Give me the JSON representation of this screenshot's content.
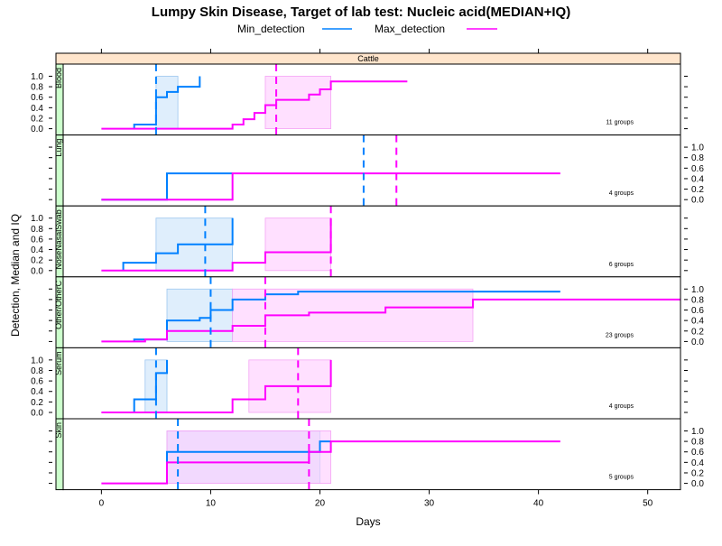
{
  "chart_data": {
    "type": "line",
    "title": "Lumpy Skin Disease, Target of lab test: Nucleic acid(MEDIAN+IQ)",
    "xlabel": "Days",
    "ylabel": "Detection, Median and IQ",
    "strip": "Cattle",
    "xlim": [
      -3.5,
      53
    ],
    "ylim": [
      0,
      1
    ],
    "x_ticks": [
      0,
      10,
      20,
      30,
      40,
      50
    ],
    "y_ticks": [
      0.0,
      0.2,
      0.4,
      0.6,
      0.8,
      1.0
    ],
    "y_tick_labels": [
      "0.0",
      "0.2",
      "0.4",
      "0.6",
      "0.8",
      "1.0"
    ],
    "legend": [
      {
        "name": "Min_detection",
        "color": "#0080ff"
      },
      {
        "name": "Max_detection",
        "color": "#ff00ff"
      }
    ],
    "colors": {
      "min": "#0080ff",
      "max": "#ff00ff",
      "min_band": "#d4e8fb",
      "max_band": "#ffccff",
      "overlap_band": "#d9c2f5",
      "strip_bg": "#ffe5cc",
      "panel_strip_bg": "#ccffcc"
    },
    "panels": [
      {
        "name": "Blood",
        "groups": "11 groups",
        "axis_side": "left",
        "min_median": 5,
        "min_iq": [
          5,
          7
        ],
        "max_median": 16,
        "max_iq": [
          15,
          21
        ],
        "min_step": [
          [
            3,
            0
          ],
          [
            3,
            0.08
          ],
          [
            5,
            0.08
          ],
          [
            5,
            0.6
          ],
          [
            6,
            0.6
          ],
          [
            6,
            0.7
          ],
          [
            7,
            0.7
          ],
          [
            7,
            0.8
          ],
          [
            9,
            0.8
          ],
          [
            9,
            1.0
          ]
        ],
        "max_step": [
          [
            0,
            0
          ],
          [
            12,
            0
          ],
          [
            12,
            0.08
          ],
          [
            13,
            0.08
          ],
          [
            13,
            0.18
          ],
          [
            14,
            0.18
          ],
          [
            14,
            0.3
          ],
          [
            15,
            0.3
          ],
          [
            15,
            0.45
          ],
          [
            16,
            0.45
          ],
          [
            16,
            0.55
          ],
          [
            19,
            0.55
          ],
          [
            19,
            0.65
          ],
          [
            20,
            0.65
          ],
          [
            20,
            0.75
          ],
          [
            21,
            0.75
          ],
          [
            21,
            0.9
          ],
          [
            28,
            0.9
          ]
        ]
      },
      {
        "name": "Lung",
        "groups": "4 groups",
        "axis_side": "right",
        "min_median": 24,
        "min_iq": null,
        "max_median": 27,
        "max_iq": null,
        "min_step": [
          [
            0,
            0
          ],
          [
            6,
            0
          ],
          [
            6,
            0.5
          ],
          [
            12,
            0.5
          ]
        ],
        "max_step": [
          [
            0,
            0
          ],
          [
            12,
            0
          ],
          [
            12,
            0.5
          ],
          [
            42,
            0.5
          ]
        ]
      },
      {
        "name": "NoseNasalSwab",
        "groups": "6 groups",
        "axis_side": "left",
        "min_median": 9.5,
        "min_iq": [
          5,
          12
        ],
        "max_median": 21,
        "max_iq": [
          15,
          21
        ],
        "min_step": [
          [
            2,
            0
          ],
          [
            2,
            0.15
          ],
          [
            5,
            0.15
          ],
          [
            5,
            0.33
          ],
          [
            7,
            0.33
          ],
          [
            7,
            0.5
          ],
          [
            12,
            0.5
          ],
          [
            12,
            1.0
          ]
        ],
        "max_step": [
          [
            0,
            0
          ],
          [
            12,
            0
          ],
          [
            12,
            0.15
          ],
          [
            15,
            0.15
          ],
          [
            15,
            0.35
          ],
          [
            21,
            0.35
          ],
          [
            21,
            1.0
          ]
        ]
      },
      {
        "name": "Other/OtherC",
        "groups": "23 groups",
        "axis_side": "right",
        "min_median": 10,
        "min_iq": [
          6,
          12
        ],
        "max_median": 15,
        "max_iq": [
          12,
          34
        ],
        "min_step": [
          [
            3,
            0
          ],
          [
            3,
            0.04
          ],
          [
            6,
            0.04
          ],
          [
            6,
            0.4
          ],
          [
            9,
            0.4
          ],
          [
            9,
            0.45
          ],
          [
            10,
            0.45
          ],
          [
            10,
            0.6
          ],
          [
            12,
            0.6
          ],
          [
            12,
            0.8
          ],
          [
            15,
            0.8
          ],
          [
            15,
            0.9
          ],
          [
            18,
            0.9
          ],
          [
            18,
            0.95
          ],
          [
            42,
            0.95
          ]
        ],
        "max_step": [
          [
            0,
            0
          ],
          [
            4,
            0
          ],
          [
            4,
            0.04
          ],
          [
            6,
            0.04
          ],
          [
            6,
            0.2
          ],
          [
            12,
            0.2
          ],
          [
            12,
            0.3
          ],
          [
            15,
            0.3
          ],
          [
            15,
            0.5
          ],
          [
            19,
            0.5
          ],
          [
            19,
            0.55
          ],
          [
            26,
            0.55
          ],
          [
            26,
            0.65
          ],
          [
            34,
            0.65
          ],
          [
            34,
            0.8
          ],
          [
            53,
            0.8
          ]
        ]
      },
      {
        "name": "Serum",
        "groups": "4 groups",
        "axis_side": "left",
        "min_median": 5,
        "min_iq": [
          4,
          6
        ],
        "max_median": 18,
        "max_iq": [
          13.5,
          21
        ],
        "min_step": [
          [
            3,
            0
          ],
          [
            3,
            0.25
          ],
          [
            5,
            0.25
          ],
          [
            5,
            0.75
          ],
          [
            6,
            0.75
          ],
          [
            6,
            1.0
          ]
        ],
        "max_step": [
          [
            0,
            0
          ],
          [
            12,
            0
          ],
          [
            12,
            0.25
          ],
          [
            15,
            0.25
          ],
          [
            15,
            0.5
          ],
          [
            21,
            0.5
          ],
          [
            21,
            1.0
          ]
        ]
      },
      {
        "name": "Skin",
        "groups": "5 groups",
        "axis_side": "right",
        "min_median": 7,
        "min_iq": [
          6,
          20
        ],
        "max_median": 19,
        "max_iq": [
          6,
          21
        ],
        "min_step": [
          [
            6,
            0
          ],
          [
            6,
            0.6
          ],
          [
            20,
            0.6
          ],
          [
            20,
            0.8
          ],
          [
            21,
            0.8
          ]
        ],
        "max_step": [
          [
            0,
            0
          ],
          [
            6,
            0
          ],
          [
            6,
            0.4
          ],
          [
            19,
            0.4
          ],
          [
            19,
            0.6
          ],
          [
            21,
            0.6
          ],
          [
            21,
            0.8
          ],
          [
            42,
            0.8
          ]
        ]
      }
    ]
  }
}
